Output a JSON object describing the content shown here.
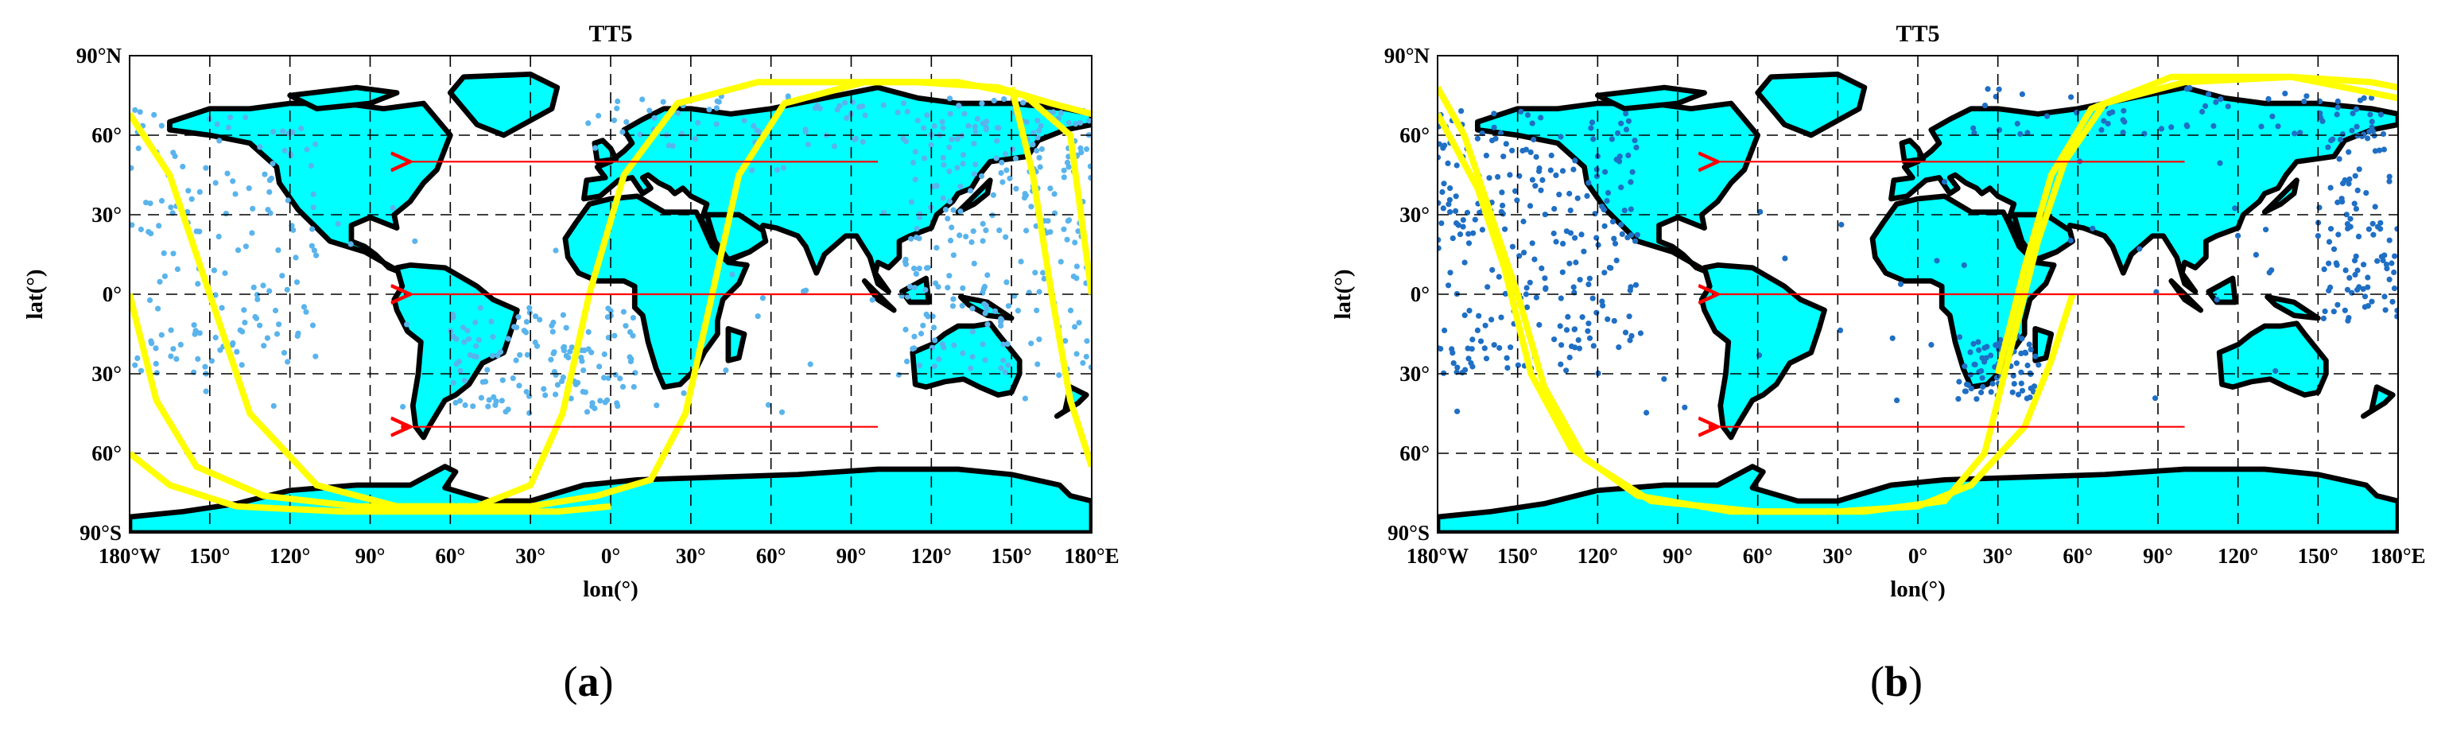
{
  "panels": [
    {
      "id": "a",
      "title": "TT5",
      "caption": "a",
      "point_color": "#5ab4ec",
      "orbit_color": "#ffff00",
      "x_ticks": [
        "180°W",
        "150°",
        "120°",
        "90°",
        "60°",
        "30°",
        "0°",
        "30°",
        "60°",
        "90°",
        "120°",
        "150°",
        "180°E"
      ],
      "y_ticks": [
        "90°N",
        "60°",
        "30°",
        "0°",
        "30°",
        "60°",
        "90°S"
      ],
      "xlabel": "lon(°)",
      "ylabel": "lat(°)",
      "reflection_tracks": [
        {
          "lon_start": 100,
          "lon_end": -75,
          "lat": 50
        },
        {
          "lon_start": 100,
          "lon_end": -75,
          "lat": 0
        },
        {
          "lon_start": 100,
          "lon_end": -75,
          "lat": -50
        }
      ],
      "orbit_segments": [
        [
          [
            -180,
            68
          ],
          [
            -165,
            45
          ],
          [
            -150,
            0
          ],
          [
            -135,
            -45
          ],
          [
            -110,
            -72
          ],
          [
            -80,
            -80
          ],
          [
            -50,
            -80
          ],
          [
            -30,
            -72
          ],
          [
            -18,
            -45
          ],
          [
            -8,
            0
          ],
          [
            5,
            45
          ],
          [
            25,
            72
          ],
          [
            55,
            80
          ],
          [
            85,
            80
          ],
          [
            115,
            80
          ],
          [
            145,
            78
          ],
          [
            165,
            72
          ],
          [
            180,
            68
          ]
        ],
        [
          [
            -180,
            0
          ],
          [
            -170,
            -40
          ],
          [
            -155,
            -65
          ],
          [
            -130,
            -76
          ],
          [
            -95,
            -80
          ],
          [
            -60,
            -80
          ],
          [
            -30,
            -80
          ],
          [
            -5,
            -76
          ],
          [
            15,
            -70
          ],
          [
            28,
            -45
          ],
          [
            38,
            0
          ],
          [
            48,
            45
          ],
          [
            65,
            72
          ],
          [
            95,
            80
          ],
          [
            130,
            80
          ],
          [
            155,
            75
          ],
          [
            172,
            60
          ],
          [
            180,
            0
          ]
        ],
        [
          [
            -180,
            -60
          ],
          [
            -165,
            -72
          ],
          [
            -140,
            -80
          ],
          [
            -100,
            -82
          ],
          [
            -60,
            -82
          ],
          [
            -20,
            -82
          ],
          [
            0,
            -80
          ]
        ],
        [
          [
            150,
            78
          ],
          [
            158,
            45
          ],
          [
            165,
            0
          ],
          [
            172,
            -40
          ],
          [
            180,
            -65
          ]
        ]
      ],
      "scatter_regions": [
        {
          "lon": [
            -180,
            -110
          ],
          "lat": [
            -30,
            70
          ],
          "n": 140
        },
        {
          "lon": [
            -60,
            10
          ],
          "lat": [
            -45,
            -5
          ],
          "n": 130
        },
        {
          "lon": [
            110,
            180
          ],
          "lat": [
            -30,
            70
          ],
          "n": 220
        },
        {
          "lon": [
            -10,
            180
          ],
          "lat": [
            55,
            75
          ],
          "n": 90
        },
        {
          "lon": [
            -180,
            180
          ],
          "lat": [
            -45,
            50
          ],
          "n": 60
        }
      ]
    },
    {
      "id": "b",
      "title": "TT5",
      "caption": "b",
      "point_color": "#1f6fc4",
      "orbit_color": "#ffff00",
      "x_ticks": [
        "180°W",
        "150°",
        "120°",
        "90°",
        "60°",
        "30°",
        "0°",
        "30°",
        "60°",
        "90°",
        "120°",
        "150°",
        "180°E"
      ],
      "y_ticks": [
        "90°N",
        "60°",
        "30°",
        "0°",
        "30°",
        "60°",
        "90°S"
      ],
      "xlabel": "lon(°)",
      "ylabel": "lat(°)",
      "reflection_tracks": [
        {
          "lon_start": 100,
          "lon_end": -75,
          "lat": 50
        },
        {
          "lon_start": 100,
          "lon_end": -75,
          "lat": 0
        },
        {
          "lon_start": 100,
          "lon_end": -75,
          "lat": -50
        }
      ],
      "orbit_segments": [
        [
          [
            -180,
            78
          ],
          [
            -170,
            60
          ],
          [
            -160,
            30
          ],
          [
            -150,
            0
          ],
          [
            -140,
            -35
          ],
          [
            -125,
            -62
          ],
          [
            -100,
            -78
          ],
          [
            -60,
            -82
          ],
          [
            -20,
            -82
          ],
          [
            10,
            -78
          ],
          [
            25,
            -60
          ],
          [
            35,
            -20
          ],
          [
            45,
            20
          ],
          [
            55,
            50
          ],
          [
            70,
            72
          ],
          [
            100,
            80
          ],
          [
            140,
            82
          ],
          [
            170,
            80
          ],
          [
            180,
            78
          ]
        ],
        [
          [
            -180,
            68
          ],
          [
            -165,
            40
          ],
          [
            -155,
            10
          ],
          [
            -145,
            -30
          ],
          [
            -130,
            -58
          ],
          [
            -105,
            -76
          ],
          [
            -70,
            -82
          ],
          [
            -30,
            -82
          ],
          [
            0,
            -80
          ],
          [
            20,
            -72
          ],
          [
            40,
            -50
          ],
          [
            50,
            -25
          ],
          [
            58,
            0
          ]
        ],
        [
          [
            30,
            -30
          ],
          [
            40,
            10
          ],
          [
            50,
            45
          ],
          [
            65,
            70
          ],
          [
            95,
            82
          ],
          [
            140,
            82
          ],
          [
            180,
            74
          ]
        ]
      ],
      "scatter_regions": [
        {
          "lon": [
            -180,
            -105
          ],
          "lat": [
            -30,
            70
          ],
          "n": 260
        },
        {
          "lon": [
            15,
            45
          ],
          "lat": [
            -40,
            -15
          ],
          "n": 70
        },
        {
          "lon": [
            150,
            180
          ],
          "lat": [
            -10,
            70
          ],
          "n": 110
        },
        {
          "lon": [
            20,
            180
          ],
          "lat": [
            60,
            78
          ],
          "n": 60
        },
        {
          "lon": [
            -180,
            180
          ],
          "lat": [
            -45,
            55
          ],
          "n": 40
        }
      ]
    }
  ]
}
